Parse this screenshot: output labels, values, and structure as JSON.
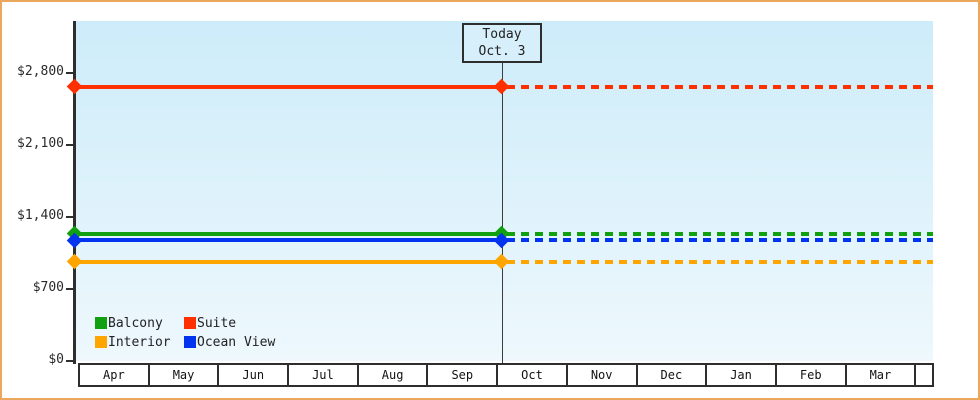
{
  "chart_data": {
    "type": "line",
    "x_categories": [
      "Apr",
      "May",
      "Jun",
      "Jul",
      "Aug",
      "Sep",
      "Oct",
      "Nov",
      "Dec",
      "Jan",
      "Feb",
      "Mar"
    ],
    "y_axis": {
      "ticks": [
        {
          "label": "$0",
          "value": 0
        },
        {
          "label": "$700",
          "value": 700
        },
        {
          "label": "$1,400",
          "value": 1400
        },
        {
          "label": "$2,100",
          "value": 2100
        },
        {
          "label": "$2,800",
          "value": 2800
        }
      ],
      "range": [
        0,
        3300
      ]
    },
    "series": [
      {
        "name": "Suite",
        "color": "#ff3000",
        "value": 2660
      },
      {
        "name": "Balcony",
        "color": "#10a010",
        "value": 1230
      },
      {
        "name": "Ocean View",
        "color": "#0433f0",
        "value": 1170
      },
      {
        "name": "Interior",
        "color": "#ffa500",
        "value": 960
      }
    ],
    "style_note": "flat price lines: solid with diamond endpoints up to today, dashed projection after today",
    "today": {
      "line1": "Today",
      "line2": "Oct. 3",
      "month_index": 6,
      "day": 3
    },
    "legend": {
      "position": "inside-bottom-left",
      "items": [
        {
          "label": "Balcony",
          "color": "#10a010"
        },
        {
          "label": "Suite",
          "color": "#ff3000"
        },
        {
          "label": "Interior",
          "color": "#ffa500"
        },
        {
          "label": "Ocean View",
          "color": "#0433f0"
        }
      ]
    }
  },
  "colors": {
    "frame_border": "#eba75e",
    "plot_gradient_top": "#cdecf9",
    "plot_gradient_bottom": "#eef8fd",
    "axis": "#2e2e2e",
    "today_box_bg": "#d6effa"
  }
}
